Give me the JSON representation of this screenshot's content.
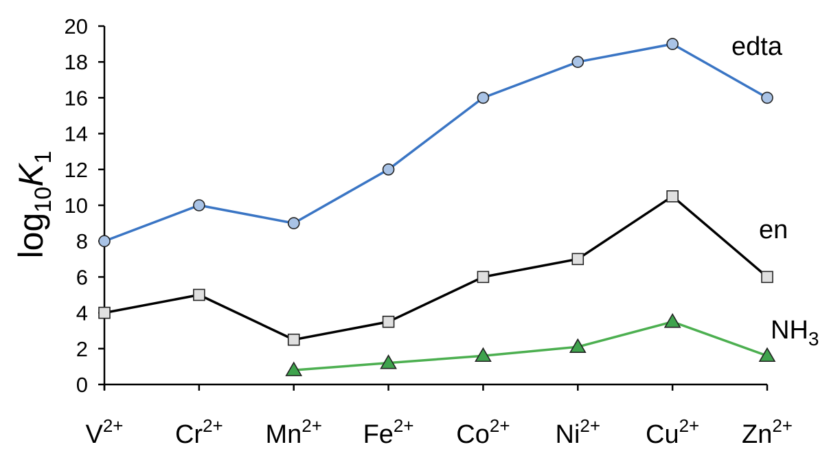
{
  "chart_data": {
    "type": "line",
    "ylabel": "log10K1",
    "ylabel_parts": {
      "base": "log",
      "base_sub": "10",
      "var": "K",
      "var_sub": "1"
    },
    "ylim": [
      0,
      20
    ],
    "yticks": [
      0,
      2,
      4,
      6,
      8,
      10,
      12,
      14,
      16,
      18,
      20
    ],
    "ytick_labels": [
      "0",
      "2",
      "4",
      "6",
      "8",
      "10",
      "12",
      "14",
      "16",
      "18",
      "20"
    ],
    "grid": false,
    "categories": [
      {
        "base": "V",
        "sup": "2+"
      },
      {
        "base": "Cr",
        "sup": "2+"
      },
      {
        "base": "Mn",
        "sup": "2+"
      },
      {
        "base": "Fe",
        "sup": "2+"
      },
      {
        "base": "Co",
        "sup": "2+"
      },
      {
        "base": "Ni",
        "sup": "2+"
      },
      {
        "base": "Cu",
        "sup": "2+"
      },
      {
        "base": "Zn",
        "sup": "2+"
      }
    ],
    "series": [
      {
        "name": "edta",
        "label_base": "edta",
        "label_sub": "",
        "color": "#3a75c4",
        "marker": "circle",
        "marker_fill": "#a9c3e6",
        "values": [
          8,
          10,
          9,
          12,
          16,
          18,
          19,
          16
        ]
      },
      {
        "name": "en",
        "label_base": "en",
        "label_sub": "",
        "color": "#000000",
        "marker": "square",
        "marker_fill": "#e0e0e0",
        "values": [
          4,
          5,
          2.5,
          3.5,
          6,
          7,
          10.5,
          6
        ]
      },
      {
        "name": "NH3",
        "label_base": "NH",
        "label_sub": "3",
        "color": "#4caf50",
        "marker": "triangle",
        "marker_fill": "#3fa34d",
        "values": [
          null,
          null,
          0.8,
          1.2,
          1.6,
          2.1,
          3.5,
          1.6
        ]
      }
    ]
  }
}
